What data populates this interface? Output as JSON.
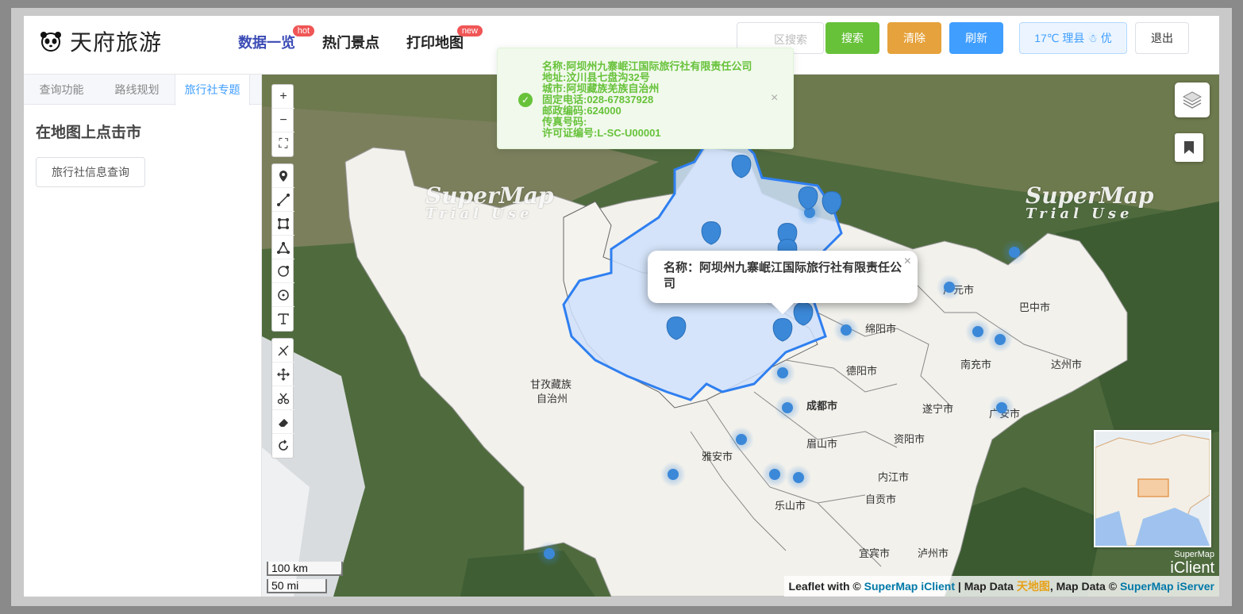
{
  "header": {
    "logo_text": "天府旅游",
    "nav": [
      {
        "label": "数据一览",
        "badge": "hot"
      },
      {
        "label": "热门景点",
        "badge": ""
      },
      {
        "label": "打印地图",
        "badge": "new"
      }
    ],
    "search_placeholder": "区搜索",
    "search_label": "搜索",
    "clear_label": "清除",
    "refresh_label": "刷新",
    "weather": "17℃ 理县 ☃ 优",
    "logout_label": "退出"
  },
  "sidebar": {
    "tabs": [
      "查询功能",
      "路线规划",
      "旅行社专题"
    ],
    "active_tab": 2,
    "title": "在地图上点击市",
    "query_button": "旅行社信息查询"
  },
  "notice": {
    "lines": [
      "名称:阿坝州九寨岷江国际旅行社有限责任公司",
      "地址:汶川县七盘沟32号",
      "城市:阿坝藏族羌族自治州",
      "固定电话:028-67837928",
      "邮政编码:624000",
      "传真号码:",
      "许可证编号:L-SC-U00001"
    ],
    "close": "×"
  },
  "popup": {
    "text": "名称：阿坝州九寨岷江国际旅行社有限责任公司",
    "close": "×"
  },
  "map": {
    "watermark_a": "SuperMap",
    "watermark_b": "Trial Use",
    "cities": [
      "甘孜藏族",
      "自治州",
      "广元市",
      "巴中市",
      "绵阳市",
      "南充市",
      "达州市",
      "德阳市",
      "成都市",
      "遂宁市",
      "广安市",
      "雅安市",
      "眉山市",
      "资阳市",
      "内江市",
      "乐山市",
      "自贡市",
      "宜宾市",
      "泸州市"
    ],
    "scale_km": "100 km",
    "scale_mi": "50 mi",
    "iclient_a": "SuperMap",
    "iclient_b": "iClient",
    "attribution": {
      "prefix": "Leaflet with © ",
      "iclient": "SuperMap iClient",
      "mid": " | Map Data ",
      "tianditu": "天地图",
      "mid2": ", Map Data © ",
      "iserver": "SuperMap iServer"
    },
    "tools": [
      "zoom-in-icon",
      "zoom-out-icon",
      "fullscreen-icon",
      "marker-icon",
      "polyline-icon",
      "rectangle-icon",
      "polygon-icon",
      "circle-marker-icon",
      "circle-icon",
      "text-icon",
      "cut-icon",
      "drag-icon",
      "scissors-icon",
      "eraser-icon",
      "rotate-icon"
    ]
  },
  "colors": {
    "accent": "#409eff",
    "success": "#67c23a",
    "warning": "#e6a23c",
    "highlight_fill": "#cfe0fb",
    "highlight_stroke": "#2f7ff0",
    "marker": "#3b88d8"
  }
}
